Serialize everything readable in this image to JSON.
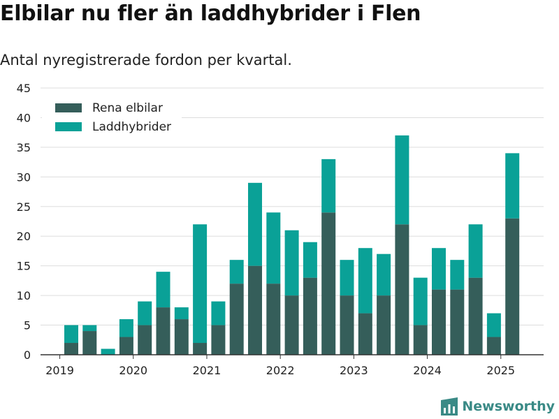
{
  "chart_data": {
    "type": "bar",
    "stacked": true,
    "title": "Elbilar nu fler än laddhybrider i Flen",
    "subtitle": "Antal nyregistrerade fordon per kvartal.",
    "xlabel": "",
    "ylabel": "",
    "ylim": [
      0,
      45
    ],
    "yticks": [
      0,
      5,
      10,
      15,
      20,
      25,
      30,
      35,
      40,
      45
    ],
    "xtick_labels": [
      "2019",
      "2020",
      "2021",
      "2022",
      "2023",
      "2024",
      "2025"
    ],
    "grid": true,
    "legend_position": "top-left",
    "categories": [
      "2019 Q1",
      "2019 Q2",
      "2019 Q3",
      "2019 Q4",
      "2020 Q1",
      "2020 Q2",
      "2020 Q3",
      "2020 Q4",
      "2021 Q1",
      "2021 Q2",
      "2021 Q3",
      "2021 Q4",
      "2022 Q1",
      "2022 Q2",
      "2022 Q3",
      "2022 Q4",
      "2023 Q1",
      "2023 Q2",
      "2023 Q3",
      "2023 Q4",
      "2024 Q1",
      "2024 Q2",
      "2024 Q3",
      "2024 Q4",
      "2025 Q1",
      "2025 Q2"
    ],
    "series": [
      {
        "name": "Rena elbilar",
        "color": "#355e5a",
        "values": [
          2,
          4,
          0,
          3,
          5,
          8,
          6,
          2,
          5,
          12,
          15,
          12,
          10,
          13,
          24,
          10,
          7,
          10,
          22,
          5,
          11,
          11,
          13,
          3,
          23,
          0
        ]
      },
      {
        "name": "Laddhybrider",
        "color": "#0aa197",
        "values": [
          3,
          1,
          1,
          3,
          4,
          6,
          2,
          20,
          4,
          4,
          14,
          12,
          11,
          6,
          9,
          6,
          11,
          7,
          15,
          8,
          7,
          5,
          9,
          4,
          11,
          0
        ]
      }
    ]
  },
  "brand": {
    "name": "Newsworthy",
    "icon": "bar-chart-logo-icon",
    "color": "#3a8a86"
  }
}
